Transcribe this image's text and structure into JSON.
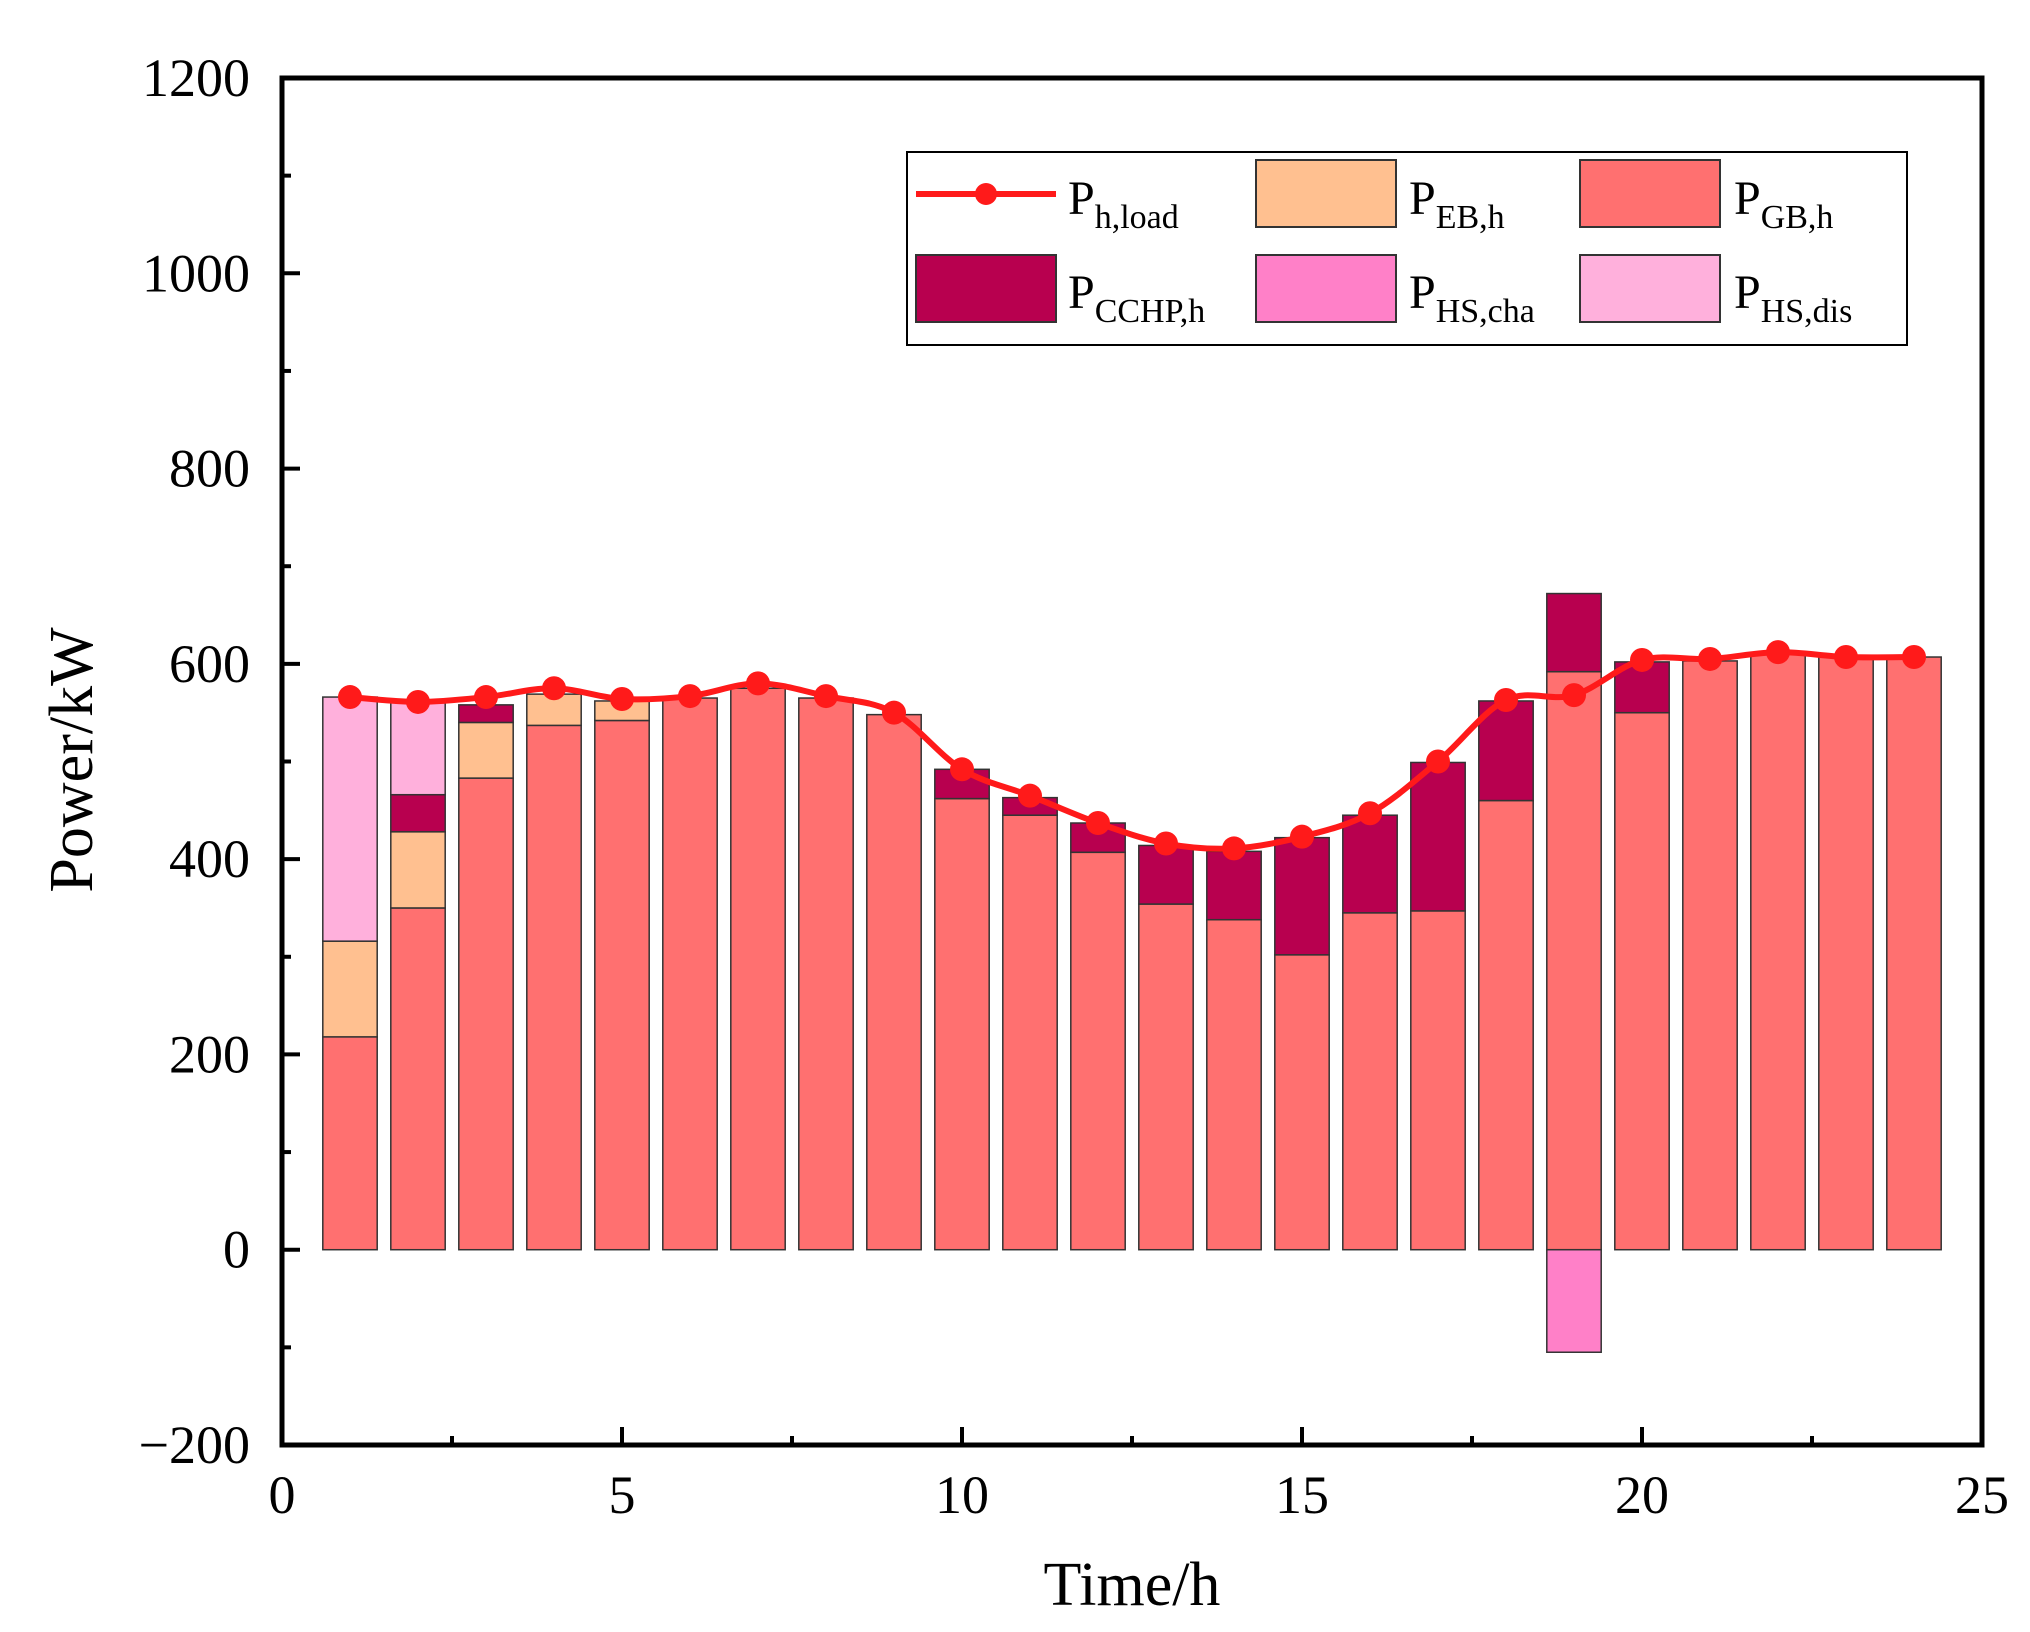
{
  "chart_data": {
    "type": "bar",
    "stacked": true,
    "title": "",
    "xlabel": "Time/h",
    "ylabel": "Power/kW",
    "xlim": [
      0,
      25
    ],
    "ylim": [
      -200,
      1200
    ],
    "x_ticks": [
      "0",
      "5",
      "10",
      "15",
      "20",
      "25"
    ],
    "y_ticks": [
      "−200",
      "0",
      "200",
      "400",
      "600",
      "800",
      "1000",
      "1200"
    ],
    "legend_position": "top-right",
    "x": [
      1,
      2,
      3,
      4,
      5,
      6,
      7,
      8,
      9,
      10,
      11,
      12,
      13,
      14,
      15,
      16,
      17,
      18,
      19,
      20,
      21,
      22,
      23,
      24
    ],
    "series": [
      {
        "key": "gb",
        "name": "P",
        "sub": "GB,h",
        "kind": "bar",
        "color": "#FF7070",
        "values": [
          218,
          350,
          483,
          537,
          542,
          565,
          575,
          565,
          548,
          462,
          445,
          407,
          354,
          338,
          302,
          345,
          347,
          460,
          592,
          550,
          603,
          610,
          608,
          607
        ]
      },
      {
        "key": "eb",
        "name": "P",
        "sub": "EB,h",
        "kind": "bar",
        "color": "#FFC090",
        "values": [
          98,
          78,
          57,
          32,
          20,
          0,
          0,
          0,
          0,
          0,
          0,
          0,
          0,
          0,
          0,
          0,
          0,
          0,
          0,
          0,
          0,
          0,
          0,
          0
        ]
      },
      {
        "key": "cchp",
        "name": "P",
        "sub": "CCHP,h",
        "kind": "bar",
        "color": "#B8004F",
        "values": [
          0,
          38,
          18,
          0,
          0,
          0,
          0,
          0,
          0,
          30,
          18,
          30,
          60,
          70,
          120,
          100,
          152,
          102,
          80,
          52,
          0,
          0,
          0,
          0
        ]
      },
      {
        "key": "hscha",
        "name": "P",
        "sub": "HS,cha",
        "kind": "bar",
        "color": "#FF80C8",
        "values": [
          0,
          0,
          0,
          0,
          0,
          0,
          0,
          0,
          0,
          0,
          0,
          0,
          0,
          0,
          0,
          0,
          0,
          0,
          -105,
          0,
          0,
          0,
          0,
          0
        ]
      },
      {
        "key": "hsdis",
        "name": "P",
        "sub": "HS,dis",
        "kind": "bar",
        "color": "#FFB0DC",
        "values": [
          250,
          96,
          0,
          0,
          0,
          0,
          0,
          0,
          0,
          0,
          0,
          0,
          0,
          0,
          0,
          0,
          0,
          0,
          0,
          0,
          0,
          0,
          0,
          0
        ]
      },
      {
        "key": "load",
        "name": "P",
        "sub": "h,load",
        "kind": "line",
        "color": "#FF1A1A",
        "values": [
          566,
          561,
          566,
          575,
          564,
          567,
          580,
          567,
          550,
          492,
          465,
          437,
          416,
          411,
          423,
          447,
          500,
          563,
          568,
          604,
          605,
          612,
          607,
          607
        ]
      }
    ]
  }
}
